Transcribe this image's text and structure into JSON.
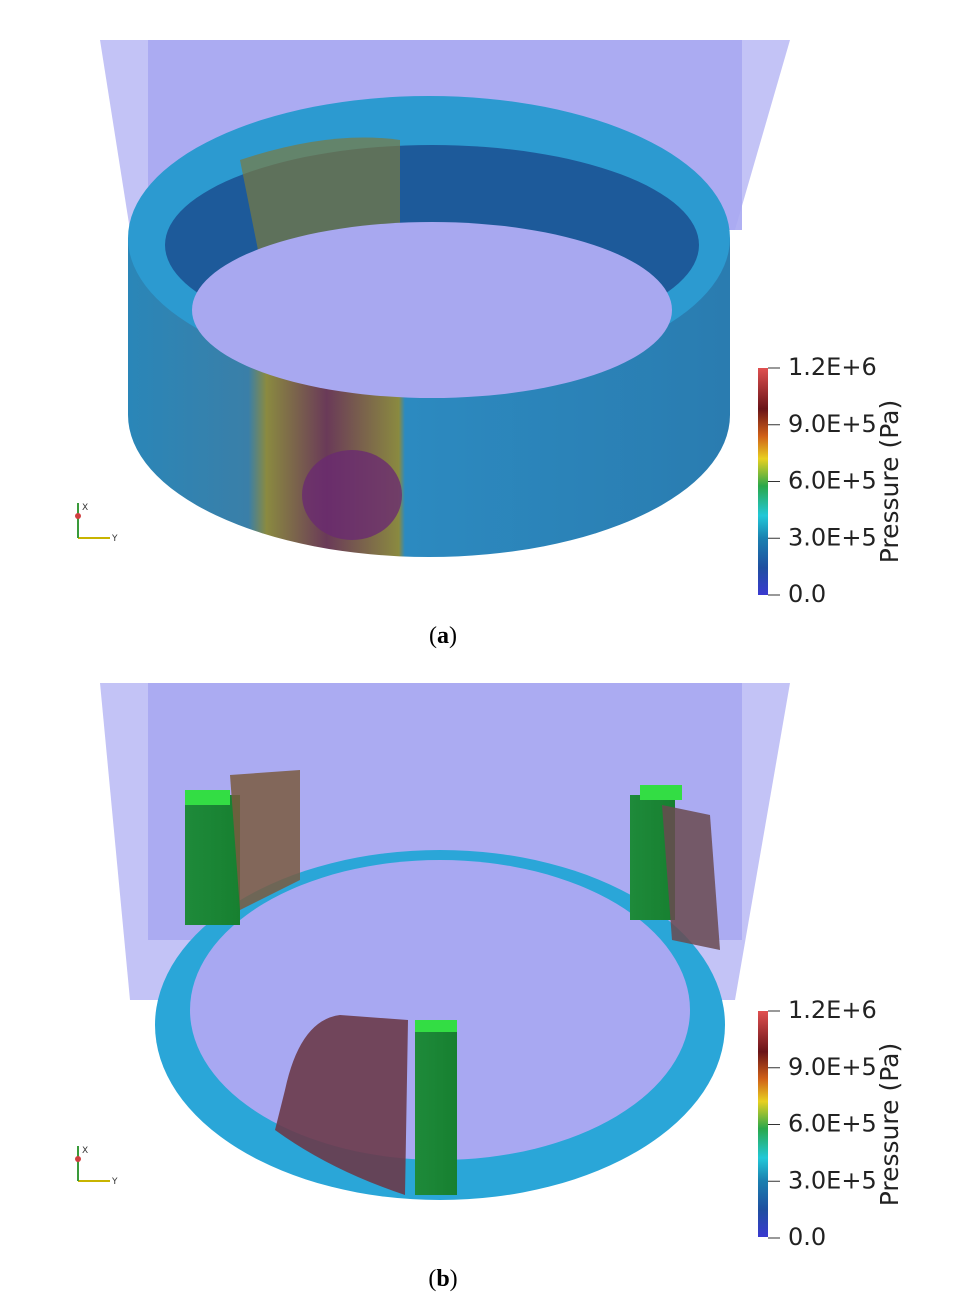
{
  "panels": [
    {
      "colorbar": {
        "title": "Pressure (Pa)",
        "ticks": [
          "1.2E+6",
          "9.0E+5",
          "6.0E+5",
          "3.0E+5",
          "0.0"
        ]
      },
      "axes": {
        "x": "X",
        "y": "Y"
      },
      "caption": {
        "open": "(",
        "letter": "a",
        "close": ")"
      }
    },
    {
      "colorbar": {
        "title": "Pressure (Pa)",
        "ticks": [
          "1.2E+6",
          "9.0E+5",
          "6.0E+5",
          "3.0E+5",
          "0.0"
        ]
      },
      "axes": {
        "x": "X",
        "y": "Y"
      },
      "caption": {
        "open": "(",
        "letter": "b",
        "close": ")"
      }
    }
  ]
}
